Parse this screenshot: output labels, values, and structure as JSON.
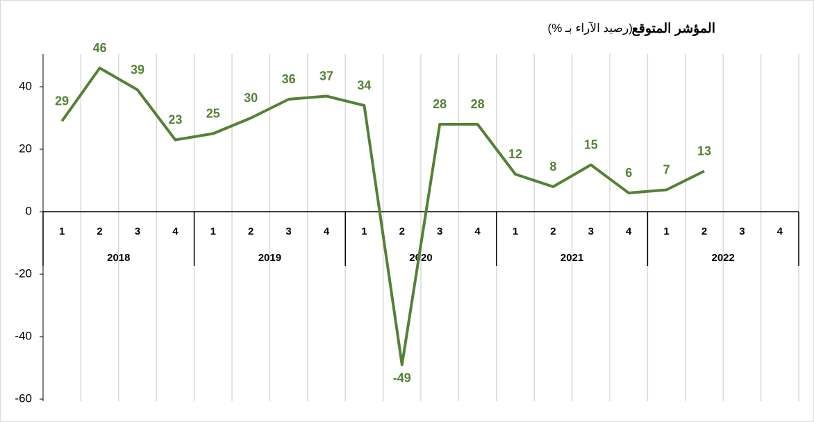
{
  "chart_data": {
    "type": "line",
    "title": "المؤشر المتوقع",
    "subtitle": "(رصيد الآراء بـ %)",
    "categories": [
      "1",
      "2",
      "3",
      "4",
      "1",
      "2",
      "3",
      "4",
      "1",
      "2",
      "3",
      "4",
      "1",
      "2",
      "3",
      "4",
      "1",
      "2",
      "3",
      "4"
    ],
    "category_groups": [
      "2018",
      "2019",
      "2020",
      "2021",
      "2022"
    ],
    "values": [
      29,
      46,
      39,
      23,
      25,
      30,
      36,
      37,
      34,
      -49,
      28,
      28,
      12,
      8,
      15,
      6,
      7,
      13,
      null,
      null
    ],
    "color": "#548235",
    "ylim": [
      -60,
      50
    ],
    "yticks": [
      -60,
      -40,
      -20,
      0,
      20,
      40
    ],
    "grid": "x"
  }
}
